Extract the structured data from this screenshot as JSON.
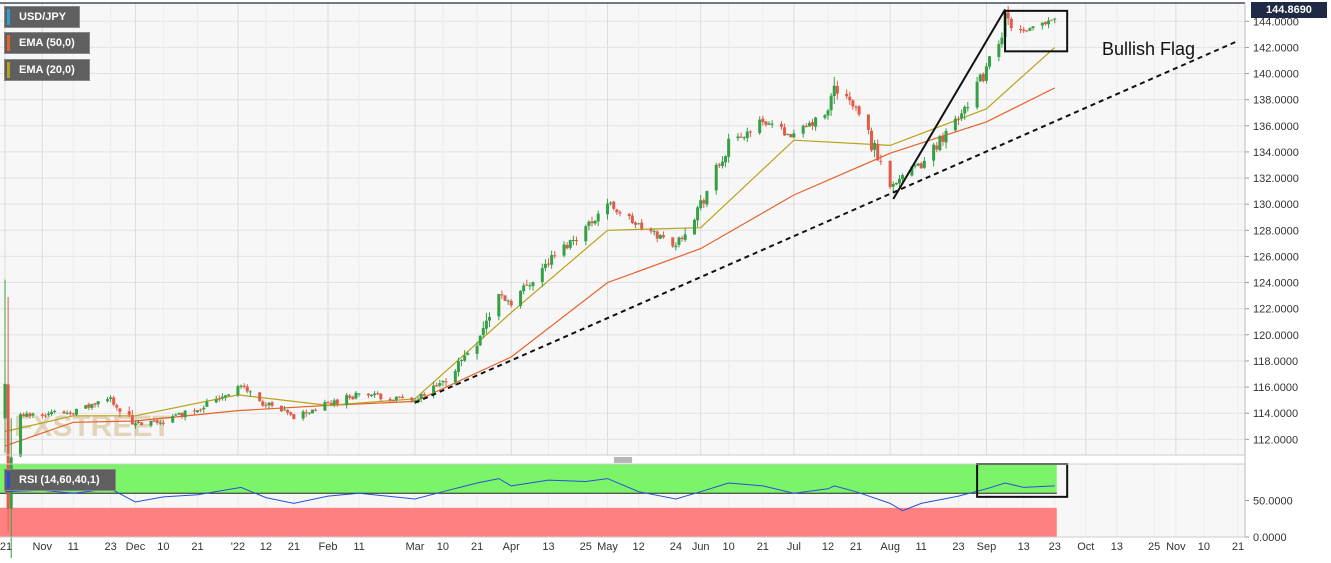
{
  "legend": {
    "symbol": "USD/JPY",
    "ema50_label": "EMA (50,0)",
    "ema20_label": "EMA (20,0)",
    "rsi_label": "RSI (14,60,40,1)"
  },
  "watermark": "FXSTREET",
  "current_price_label": "144.8690",
  "annotation": "Bullish Flag",
  "colors": {
    "up": "#35a046",
    "down": "#e05c4a",
    "ema50": "#e8612c",
    "ema20": "#b8a21a",
    "rsi_line": "#2a4fd6",
    "rsi_upper_zone": "#7cf46a",
    "rsi_lower_zone": "#ff8080",
    "price_badge": "#1f2a44"
  },
  "chart_data": [
    {
      "type": "candlestick",
      "title": "USD/JPY",
      "y_axis_ticks": [
        "112.0000",
        "114.0000",
        "116.0000",
        "118.0000",
        "120.0000",
        "122.0000",
        "124.0000",
        "126.0000",
        "128.0000",
        "130.0000",
        "132.0000",
        "134.0000",
        "136.0000",
        "138.0000",
        "140.0000",
        "142.0000",
        "144.0000"
      ],
      "ylim": [
        110.8,
        145.4
      ],
      "x_axis_ticks": [
        "'21",
        "Nov",
        "11",
        "23",
        "Dec",
        "10",
        "21",
        "'22",
        "12",
        "21",
        "Feb",
        "11",
        "Mar",
        "10",
        "21",
        "Apr",
        "13",
        "25",
        "May",
        "12",
        "24",
        "Jun",
        "10",
        "21",
        "Jul",
        "12",
        "21",
        "Aug",
        "11",
        "23",
        "Sep",
        "13",
        "23",
        "Oct",
        "13",
        "25",
        "Nov",
        "10",
        "21"
      ],
      "x_axis_tick_dates": [
        "2021-10-20",
        "2021-11-01",
        "2021-11-11",
        "2021-11-23",
        "2021-12-01",
        "2021-12-10",
        "2021-12-21",
        "2022-01-03",
        "2022-01-12",
        "2022-01-21",
        "2022-02-01",
        "2022-02-11",
        "2022-03-01",
        "2022-03-10",
        "2022-03-21",
        "2022-04-01",
        "2022-04-13",
        "2022-04-25",
        "2022-05-02",
        "2022-05-12",
        "2022-05-24",
        "2022-06-01",
        "2022-06-10",
        "2022-06-21",
        "2022-07-01",
        "2022-07-12",
        "2022-07-21",
        "2022-08-01",
        "2022-08-11",
        "2022-08-23",
        "2022-09-01",
        "2022-09-13",
        "2022-09-23",
        "2022-10-03",
        "2022-10-13",
        "2022-10-25",
        "2022-11-01",
        "2022-11-10",
        "2022-11-21"
      ],
      "close_anchors": [
        {
          "date": "2021-10-20",
          "close": 113.6
        },
        {
          "date": "2021-11-01",
          "close": 114.0
        },
        {
          "date": "2021-11-11",
          "close": 114.1
        },
        {
          "date": "2021-11-23",
          "close": 115.1
        },
        {
          "date": "2021-12-01",
          "close": 113.0
        },
        {
          "date": "2021-12-10",
          "close": 113.4
        },
        {
          "date": "2021-12-21",
          "close": 114.4
        },
        {
          "date": "2022-01-04",
          "close": 116.1
        },
        {
          "date": "2022-01-12",
          "close": 114.6
        },
        {
          "date": "2022-01-21",
          "close": 113.7
        },
        {
          "date": "2022-02-01",
          "close": 114.7
        },
        {
          "date": "2022-02-11",
          "close": 115.5
        },
        {
          "date": "2022-03-01",
          "close": 114.9
        },
        {
          "date": "2022-03-10",
          "close": 116.3
        },
        {
          "date": "2022-03-21",
          "close": 119.6
        },
        {
          "date": "2022-03-28",
          "close": 123.0
        },
        {
          "date": "2022-04-01",
          "close": 122.5
        },
        {
          "date": "2022-04-13",
          "close": 125.6
        },
        {
          "date": "2022-04-25",
          "close": 128.2
        },
        {
          "date": "2022-05-02",
          "close": 130.1
        },
        {
          "date": "2022-05-12",
          "close": 128.3
        },
        {
          "date": "2022-05-24",
          "close": 126.9
        },
        {
          "date": "2022-06-01",
          "close": 130.0
        },
        {
          "date": "2022-06-10",
          "close": 134.4
        },
        {
          "date": "2022-06-21",
          "close": 136.4
        },
        {
          "date": "2022-07-01",
          "close": 135.2
        },
        {
          "date": "2022-07-12",
          "close": 137.0
        },
        {
          "date": "2022-07-14",
          "close": 139.0
        },
        {
          "date": "2022-07-21",
          "close": 137.3
        },
        {
          "date": "2022-08-01",
          "close": 131.6
        },
        {
          "date": "2022-08-11",
          "close": 133.0
        },
        {
          "date": "2022-08-23",
          "close": 136.8
        },
        {
          "date": "2022-09-01",
          "close": 140.2
        },
        {
          "date": "2022-09-07",
          "close": 144.0
        },
        {
          "date": "2022-09-13",
          "close": 143.0
        },
        {
          "date": "2022-09-23",
          "close": 144.4
        }
      ],
      "series": [
        {
          "name": "EMA (50,0)",
          "values": [
            {
              "date": "2021-10-20",
              "value": 111.5
            },
            {
              "date": "2021-11-11",
              "value": 113.3
            },
            {
              "date": "2021-12-01",
              "value": 113.4
            },
            {
              "date": "2022-01-03",
              "value": 114.2
            },
            {
              "date": "2022-02-01",
              "value": 114.6
            },
            {
              "date": "2022-03-01",
              "value": 114.9
            },
            {
              "date": "2022-04-01",
              "value": 118.3
            },
            {
              "date": "2022-05-02",
              "value": 124.0
            },
            {
              "date": "2022-06-01",
              "value": 126.6
            },
            {
              "date": "2022-07-01",
              "value": 130.7
            },
            {
              "date": "2022-08-01",
              "value": 133.9
            },
            {
              "date": "2022-09-01",
              "value": 136.3
            },
            {
              "date": "2022-09-23",
              "value": 138.9
            }
          ]
        },
        {
          "name": "EMA (20,0)",
          "values": [
            {
              "date": "2021-10-20",
              "value": 112.6
            },
            {
              "date": "2021-11-11",
              "value": 113.8
            },
            {
              "date": "2021-12-01",
              "value": 113.8
            },
            {
              "date": "2022-01-03",
              "value": 115.4
            },
            {
              "date": "2022-02-01",
              "value": 114.6
            },
            {
              "date": "2022-03-01",
              "value": 115.1
            },
            {
              "date": "2022-04-01",
              "value": 121.7
            },
            {
              "date": "2022-05-02",
              "value": 128.0
            },
            {
              "date": "2022-06-01",
              "value": 128.2
            },
            {
              "date": "2022-07-01",
              "value": 134.9
            },
            {
              "date": "2022-08-01",
              "value": 134.5
            },
            {
              "date": "2022-09-01",
              "value": 137.3
            },
            {
              "date": "2022-09-23",
              "value": 142.0
            }
          ]
        }
      ],
      "trendline": {
        "from": {
          "date": "2022-03-01",
          "value": 114.8
        },
        "to": {
          "date": "2022-11-21",
          "value": 142.5
        },
        "style": "dashed"
      },
      "flagpole": {
        "from": {
          "date": "2022-08-02",
          "value": 130.4
        },
        "to": {
          "date": "2022-09-07",
          "value": 144.9
        }
      },
      "flag_box": {
        "from": {
          "date": "2022-09-07",
          "value": 144.8
        },
        "to": {
          "date": "2022-09-27",
          "value": 141.7
        }
      }
    },
    {
      "type": "line",
      "title": "RSI (14,60,40,1)",
      "y_axis_ticks": [
        "0.0000",
        "50.0000"
      ],
      "ylim": [
        0,
        100
      ],
      "zones": [
        {
          "from": 60,
          "to": 100,
          "color": "upper"
        },
        {
          "from": 0,
          "to": 40,
          "color": "lower"
        }
      ],
      "series": [
        {
          "name": "RSI (14,60,40,1)",
          "values": [
            {
              "date": "2021-10-20",
              "value": 62
            },
            {
              "date": "2021-11-01",
              "value": 64
            },
            {
              "date": "2021-11-11",
              "value": 60
            },
            {
              "date": "2021-11-23",
              "value": 66
            },
            {
              "date": "2021-12-01",
              "value": 48
            },
            {
              "date": "2021-12-10",
              "value": 55
            },
            {
              "date": "2021-12-21",
              "value": 58
            },
            {
              "date": "2022-01-04",
              "value": 68
            },
            {
              "date": "2022-01-12",
              "value": 54
            },
            {
              "date": "2022-01-21",
              "value": 46
            },
            {
              "date": "2022-02-01",
              "value": 56
            },
            {
              "date": "2022-02-11",
              "value": 60
            },
            {
              "date": "2022-03-01",
              "value": 52
            },
            {
              "date": "2022-03-10",
              "value": 62
            },
            {
              "date": "2022-03-21",
              "value": 74
            },
            {
              "date": "2022-03-28",
              "value": 80
            },
            {
              "date": "2022-04-01",
              "value": 70
            },
            {
              "date": "2022-04-13",
              "value": 78
            },
            {
              "date": "2022-04-25",
              "value": 76
            },
            {
              "date": "2022-05-02",
              "value": 80
            },
            {
              "date": "2022-05-12",
              "value": 62
            },
            {
              "date": "2022-05-24",
              "value": 52
            },
            {
              "date": "2022-06-01",
              "value": 62
            },
            {
              "date": "2022-06-10",
              "value": 74
            },
            {
              "date": "2022-06-21",
              "value": 70
            },
            {
              "date": "2022-07-01",
              "value": 60
            },
            {
              "date": "2022-07-12",
              "value": 66
            },
            {
              "date": "2022-07-14",
              "value": 70
            },
            {
              "date": "2022-07-21",
              "value": 62
            },
            {
              "date": "2022-08-01",
              "value": 46
            },
            {
              "date": "2022-08-05",
              "value": 36
            },
            {
              "date": "2022-08-11",
              "value": 46
            },
            {
              "date": "2022-08-23",
              "value": 56
            },
            {
              "date": "2022-09-01",
              "value": 66
            },
            {
              "date": "2022-09-07",
              "value": 74
            },
            {
              "date": "2022-09-13",
              "value": 68
            },
            {
              "date": "2022-09-23",
              "value": 70
            }
          ]
        }
      ],
      "highlight_box": {
        "from": {
          "date": "2022-08-29",
          "value": 100
        },
        "to": {
          "date": "2022-09-27",
          "value": 55
        }
      }
    }
  ]
}
